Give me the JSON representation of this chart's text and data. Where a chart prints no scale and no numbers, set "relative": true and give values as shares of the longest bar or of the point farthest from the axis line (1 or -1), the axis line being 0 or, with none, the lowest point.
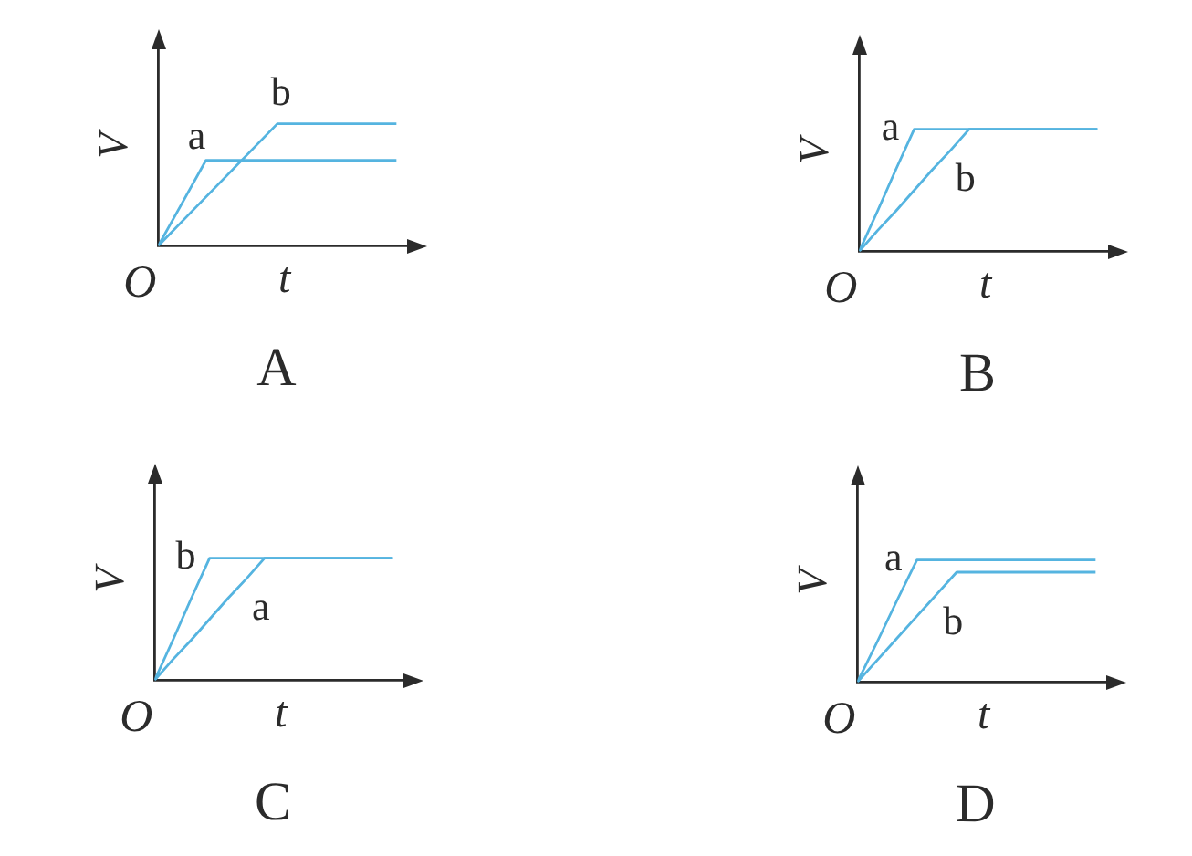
{
  "chart_data": [
    {
      "type": "line",
      "title": "A",
      "xlabel": "t",
      "ylabel": "V",
      "annotations": [
        "O"
      ],
      "relative": true,
      "marker": "none",
      "categories": [
        null,
        null,
        null,
        null,
        null,
        null,
        null,
        null,
        null,
        null,
        null
      ],
      "series": [
        {
          "name": "a",
          "color": "#55b4e0",
          "values": [
            0,
            0.35,
            0.7,
            0.7,
            0.7,
            0.7,
            0.7,
            0.7,
            0.7,
            0.7,
            0.7
          ]
        },
        {
          "name": "b",
          "color": "#55b4e0",
          "values": [
            0,
            0.2,
            0.4,
            0.6,
            0.8,
            1,
            1,
            1,
            1,
            1,
            1
          ]
        }
      ]
    },
    {
      "type": "line",
      "title": "B",
      "xlabel": "t",
      "ylabel": "V",
      "annotations": [
        "O"
      ],
      "relative": true,
      "marker": "none",
      "categories": [
        null,
        null,
        null,
        null,
        null,
        null,
        null,
        null,
        null,
        null,
        null,
        null,
        null,
        null
      ],
      "series": [
        {
          "name": "a",
          "color": "#55b4e0",
          "values": [
            0,
            0.33,
            0.67,
            1,
            1,
            1,
            1,
            1,
            1,
            1,
            1,
            1,
            1,
            1
          ]
        },
        {
          "name": "b",
          "color": "#55b4e0",
          "values": [
            0,
            0.17,
            0.33,
            0.5,
            0.67,
            0.83,
            1,
            1,
            1,
            1,
            1,
            1,
            1,
            1
          ]
        }
      ]
    },
    {
      "type": "line",
      "title": "C",
      "xlabel": "t",
      "ylabel": "V",
      "annotations": [
        "O"
      ],
      "relative": true,
      "marker": "none",
      "categories": [
        null,
        null,
        null,
        null,
        null,
        null,
        null,
        null,
        null,
        null,
        null,
        null,
        null,
        null
      ],
      "series": [
        {
          "name": "a",
          "color": "#55b4e0",
          "values": [
            0,
            0.17,
            0.33,
            0.5,
            0.67,
            0.83,
            1,
            1,
            1,
            1,
            1,
            1,
            1,
            1
          ]
        },
        {
          "name": "b",
          "color": "#55b4e0",
          "values": [
            0,
            0.33,
            0.67,
            1,
            1,
            1,
            1,
            1,
            1,
            1,
            1,
            1,
            1,
            1
          ]
        }
      ]
    },
    {
      "type": "line",
      "title": "D",
      "xlabel": "t",
      "ylabel": "V",
      "annotations": [
        "O"
      ],
      "relative": true,
      "marker": "none",
      "categories": [
        null,
        null,
        null,
        null,
        null,
        null,
        null,
        null,
        null,
        null,
        null,
        null,
        null
      ],
      "series": [
        {
          "name": "a",
          "color": "#55b4e0",
          "values": [
            0,
            0.33,
            0.67,
            1,
            1,
            1,
            1,
            1,
            1,
            1,
            1,
            1,
            1
          ]
        },
        {
          "name": "b",
          "color": "#55b4e0",
          "values": [
            0,
            0.18,
            0.36,
            0.54,
            0.72,
            0.9,
            0.9,
            0.9,
            0.9,
            0.9,
            0.9,
            0.9,
            0.9
          ]
        }
      ]
    }
  ]
}
